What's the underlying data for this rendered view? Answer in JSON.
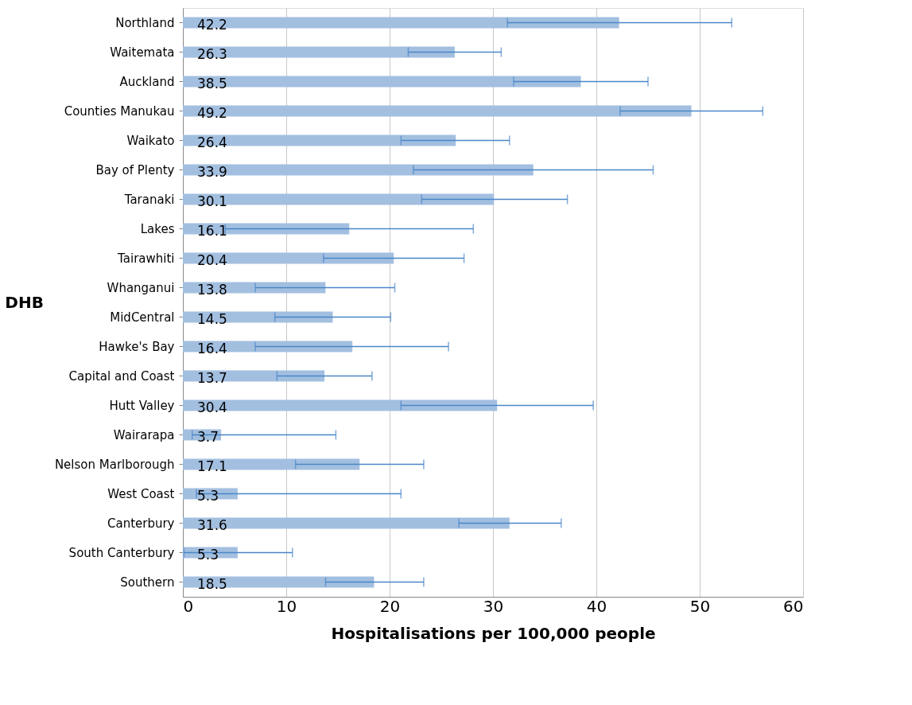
{
  "chart_data": {
    "type": "bar",
    "orientation": "horizontal",
    "xlabel": "Hospitalisations per 100,000 people",
    "ylabel": "DHB",
    "categories": [
      "Northland",
      "Waitemata",
      "Auckland",
      "Counties Manukau",
      "Waikato",
      "Bay of Plenty",
      "Taranaki",
      "Lakes",
      "Tairawhiti",
      "Whanganui",
      "MidCentral",
      "Hawke's Bay",
      "Capital and Coast",
      "Hutt Valley",
      "Wairarapa",
      "Nelson Marlborough",
      "West Coast",
      "Canterbury",
      "South Canterbury",
      "Southern"
    ],
    "values": [
      42.2,
      26.3,
      38.5,
      49.2,
      26.4,
      33.9,
      30.1,
      16.1,
      20.4,
      13.8,
      14.5,
      16.4,
      13.7,
      30.4,
      3.7,
      17.1,
      5.3,
      31.6,
      5.3,
      18.5
    ],
    "errors": [
      [
        31.4,
        53.1
      ],
      [
        21.8,
        30.8
      ],
      [
        32.0,
        45.0
      ],
      [
        42.3,
        56.1
      ],
      [
        21.1,
        31.6
      ],
      [
        22.3,
        45.5
      ],
      [
        23.1,
        37.2
      ],
      [
        4.1,
        28.1
      ],
      [
        13.6,
        27.2
      ],
      [
        7.0,
        20.5
      ],
      [
        8.9,
        20.1
      ],
      [
        7.0,
        25.7
      ],
      [
        9.1,
        18.3
      ],
      [
        21.1,
        39.7
      ],
      [
        0.9,
        14.8
      ],
      [
        10.9,
        23.3
      ],
      [
        1.3,
        21.1
      ],
      [
        26.7,
        36.6
      ],
      [
        0.1,
        10.6
      ],
      [
        13.8,
        23.3
      ]
    ],
    "color": "#a3bfe0",
    "xlim": [
      0,
      60
    ],
    "xticks": [
      0,
      10,
      20,
      30,
      40,
      50,
      60
    ],
    "grid": "x",
    "data_labels": true
  }
}
